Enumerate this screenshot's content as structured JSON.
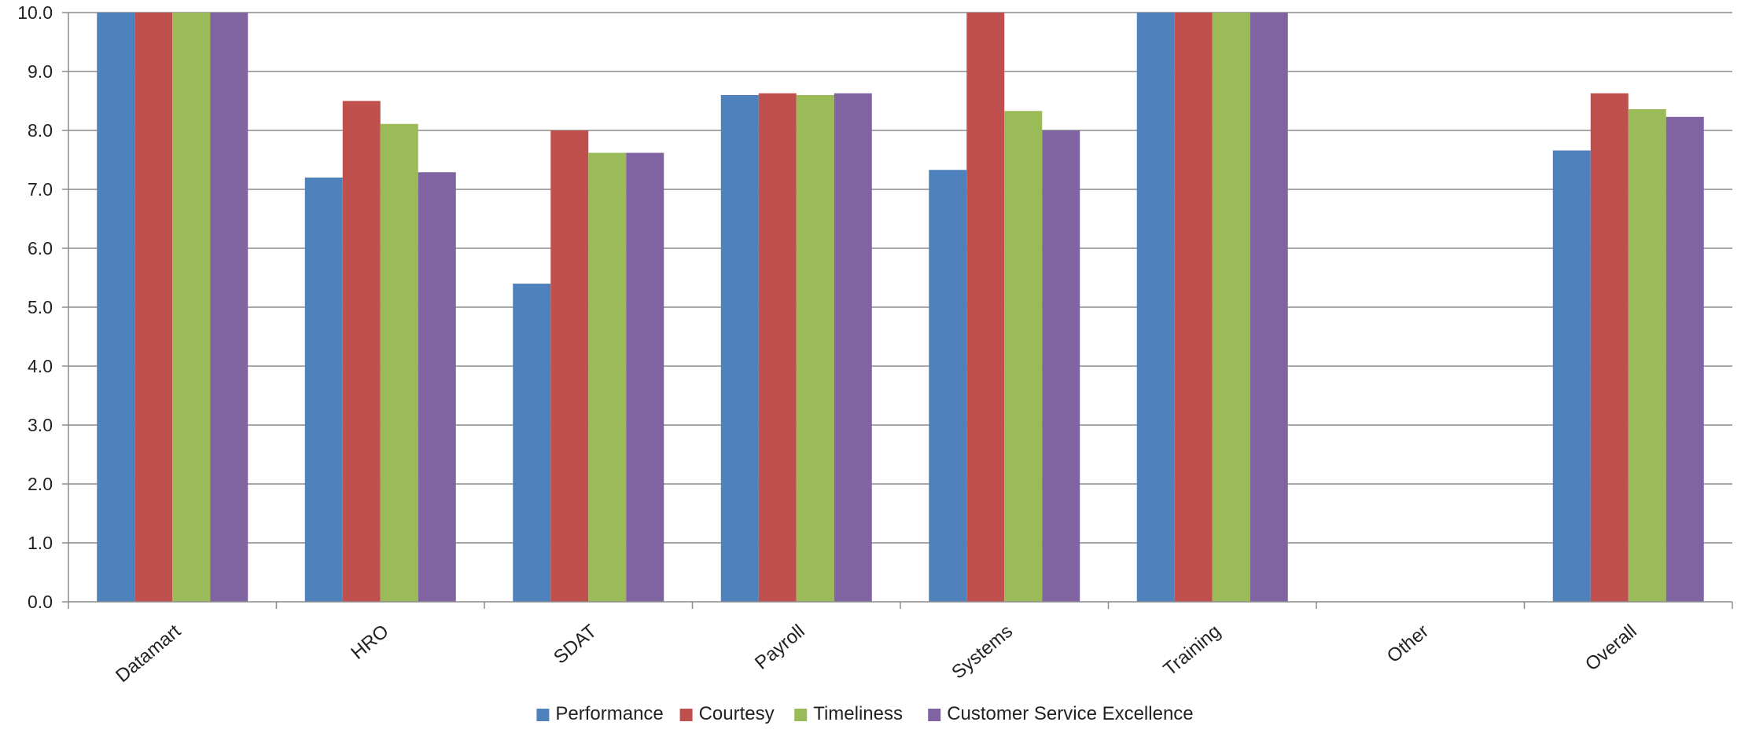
{
  "chart_data": {
    "type": "bar",
    "categories": [
      "Datamart",
      "HRO",
      "SDAT",
      "Payroll",
      "Systems",
      "Training",
      "Other",
      "Overall"
    ],
    "series": [
      {
        "name": "Performance",
        "color": "#4F81BD",
        "values": [
          10.0,
          7.2,
          5.4,
          8.6,
          7.33,
          10.0,
          null,
          7.66
        ]
      },
      {
        "name": "Courtesy",
        "color": "#C0504D",
        "values": [
          10.0,
          8.5,
          8.0,
          8.63,
          10.0,
          10.0,
          null,
          8.63
        ]
      },
      {
        "name": "Timeliness",
        "color": "#9BBB59",
        "values": [
          10.0,
          8.11,
          7.62,
          8.6,
          8.33,
          10.0,
          null,
          8.36
        ]
      },
      {
        "name": "Customer Service Excellence",
        "color": "#8064A2",
        "values": [
          10.0,
          7.29,
          7.62,
          8.63,
          8.0,
          10.0,
          null,
          8.23
        ]
      }
    ],
    "yticks": [
      "0.0",
      "1.0",
      "2.0",
      "3.0",
      "4.0",
      "5.0",
      "6.0",
      "7.0",
      "8.0",
      "9.0",
      "10.0"
    ],
    "ylim": [
      0,
      10
    ],
    "grid": true,
    "legend_position": "bottom-center",
    "title": "",
    "xlabel": "",
    "ylabel": ""
  }
}
